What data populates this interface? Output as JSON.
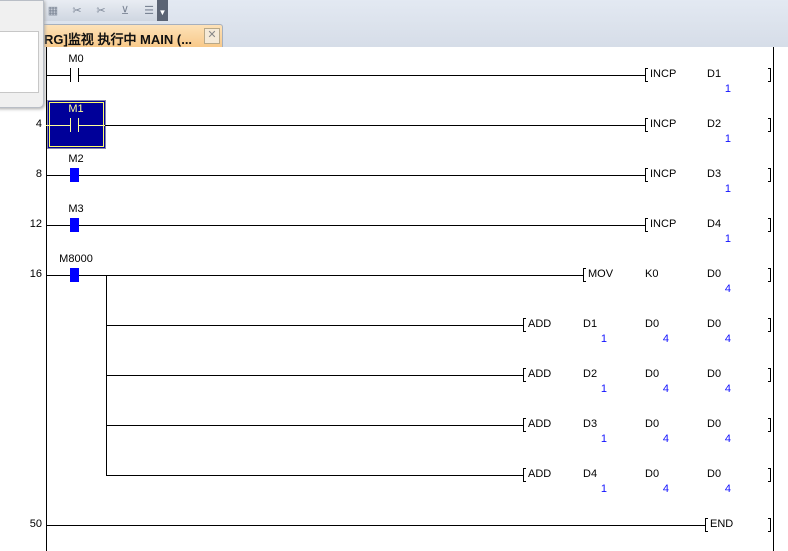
{
  "window": {
    "tab_title": "RG]监视 执行中 MAIN (...",
    "tab_close_icon": "close-icon",
    "toolbar_icons": [
      "device-icon",
      "cut-icon",
      "cut-alt-icon",
      "line-delete-icon",
      "column-delete-icon"
    ]
  },
  "colors": {
    "contact_on": "#0000ff",
    "value": "#1010ff",
    "selection": "#000099"
  },
  "rungs": [
    {
      "step": "",
      "contact": {
        "label": "M0",
        "state": "off"
      },
      "instruction": {
        "name": "INCP",
        "operands": [
          "D1"
        ],
        "values": [
          "1"
        ]
      }
    },
    {
      "step": "4",
      "contact": {
        "label": "M1",
        "state": "off",
        "selected": true
      },
      "instruction": {
        "name": "INCP",
        "operands": [
          "D2"
        ],
        "values": [
          "1"
        ]
      }
    },
    {
      "step": "8",
      "contact": {
        "label": "M2",
        "state": "on"
      },
      "instruction": {
        "name": "INCP",
        "operands": [
          "D3"
        ],
        "values": [
          "1"
        ]
      }
    },
    {
      "step": "12",
      "contact": {
        "label": "M3",
        "state": "on"
      },
      "instruction": {
        "name": "INCP",
        "operands": [
          "D4"
        ],
        "values": [
          "1"
        ]
      }
    },
    {
      "step": "16",
      "contact": {
        "label": "M8000",
        "state": "on"
      },
      "instruction": {
        "name": "MOV",
        "operands": [
          "K0",
          "D0"
        ],
        "values": [
          "",
          "4"
        ]
      },
      "branches": [
        {
          "name": "ADD",
          "operands": [
            "D1",
            "D0",
            "D0"
          ],
          "values": [
            "1",
            "4",
            "4"
          ]
        },
        {
          "name": "ADD",
          "operands": [
            "D2",
            "D0",
            "D0"
          ],
          "values": [
            "1",
            "4",
            "4"
          ]
        },
        {
          "name": "ADD",
          "operands": [
            "D3",
            "D0",
            "D0"
          ],
          "values": [
            "1",
            "4",
            "4"
          ]
        },
        {
          "name": "ADD",
          "operands": [
            "D4",
            "D0",
            "D0"
          ],
          "values": [
            "1",
            "4",
            "4"
          ]
        }
      ]
    },
    {
      "step": "50",
      "instruction": {
        "name": "END",
        "operands": [],
        "values": []
      }
    }
  ]
}
